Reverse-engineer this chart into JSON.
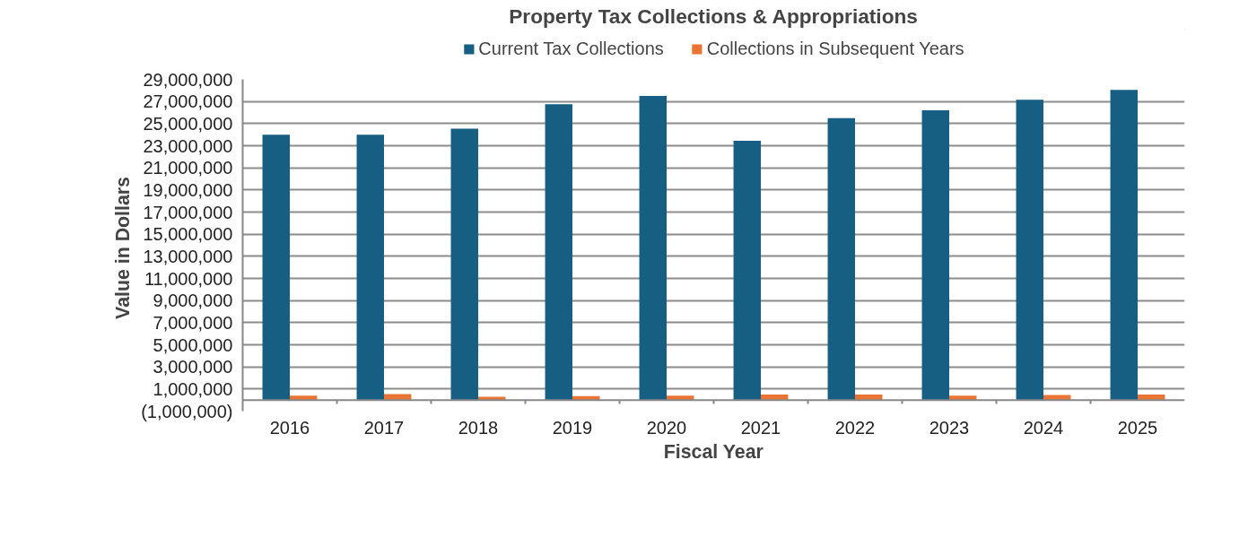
{
  "chart_data": {
    "type": "bar",
    "title": "Property Tax Collections & Appropriations",
    "xlabel": "Fiscal Year",
    "ylabel": "Value  in Dollars",
    "categories": [
      "2016",
      "2017",
      "2018",
      "2019",
      "2020",
      "2021",
      "2022",
      "2023",
      "2024",
      "2025"
    ],
    "series": [
      {
        "name": "Current Tax Collections",
        "color": "#175f82",
        "values": [
          24000000,
          24000000,
          24550000,
          26750000,
          27500000,
          23450000,
          25500000,
          26200000,
          27150000,
          28050000
        ]
      },
      {
        "name": "Collections in Subsequent Years",
        "color": "#ea7434",
        "values": [
          400000,
          550000,
          300000,
          350000,
          400000,
          500000,
          500000,
          400000,
          450000,
          500000
        ]
      }
    ],
    "ylim": [
      -1000000,
      29000000
    ],
    "yticks": [
      {
        "value": -1000000,
        "label": "(1,000,000)"
      },
      {
        "value": 1000000,
        "label": "1,000,000"
      },
      {
        "value": 3000000,
        "label": "3,000,000"
      },
      {
        "value": 5000000,
        "label": "5,000,000"
      },
      {
        "value": 7000000,
        "label": "7,000,000"
      },
      {
        "value": 9000000,
        "label": "9,000,000"
      },
      {
        "value": 11000000,
        "label": "11,000,000"
      },
      {
        "value": 13000000,
        "label": "13,000,000"
      },
      {
        "value": 15000000,
        "label": "15,000,000"
      },
      {
        "value": 17000000,
        "label": "17,000,000"
      },
      {
        "value": 19000000,
        "label": "19,000,000"
      },
      {
        "value": 21000000,
        "label": "21,000,000"
      },
      {
        "value": 23000000,
        "label": "23,000,000"
      },
      {
        "value": 25000000,
        "label": "25,000,000"
      },
      {
        "value": 27000000,
        "label": "27,000,000"
      },
      {
        "value": 29000000,
        "label": "29,000,000"
      }
    ],
    "grid": "y",
    "legend": "top"
  }
}
